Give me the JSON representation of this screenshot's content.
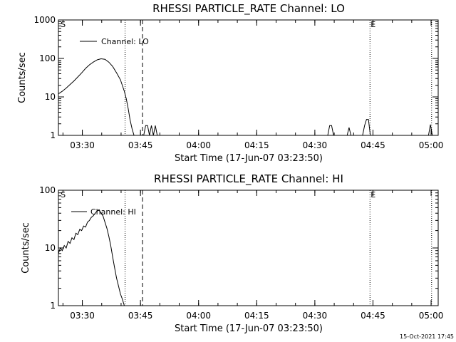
{
  "app": "RHESSI quicklook plot",
  "footer": {
    "timestamp": "15-Oct-2021 17:45"
  },
  "colors": {
    "background": "#ffffff",
    "foreground": "#000000"
  },
  "chart_data": [
    {
      "type": "line",
      "title": "RHESSI PARTICLE_RATE Channel: LO",
      "xlabel": "Start Time (17-Jun-07 03:23:50)",
      "ylabel": "Counts/sec",
      "yscale": "log",
      "ylim": [
        1,
        1000
      ],
      "xlim_minutes": [
        0,
        98
      ],
      "x_ticks": [
        {
          "minute": 6.17,
          "label": "03:30"
        },
        {
          "minute": 21.17,
          "label": "03:45"
        },
        {
          "minute": 36.17,
          "label": "04:00"
        },
        {
          "minute": 51.17,
          "label": "04:15"
        },
        {
          "minute": 66.17,
          "label": "04:30"
        },
        {
          "minute": 81.17,
          "label": "04:45"
        },
        {
          "minute": 96.17,
          "label": "05:00"
        }
      ],
      "y_ticks": [
        {
          "value": 1,
          "label": "1"
        },
        {
          "value": 10,
          "label": "10"
        },
        {
          "value": 100,
          "label": "100"
        },
        {
          "value": 1000,
          "label": "1000"
        }
      ],
      "legend": {
        "label": "Channel: LO",
        "position": "top-left"
      },
      "markers": [
        {
          "minute": 0.4,
          "label": "S",
          "style": "none"
        },
        {
          "minute": 17.2,
          "label": "",
          "style": "dotted"
        },
        {
          "minute": 21.7,
          "label": "",
          "style": "dashed"
        },
        {
          "minute": 80.4,
          "label": "E",
          "style": "dotted"
        },
        {
          "minute": 96.3,
          "label": "",
          "style": "dotted"
        }
      ],
      "series": [
        {
          "name": "Channel: LO",
          "x": [
            0,
            1,
            2,
            3,
            4,
            5,
            6,
            7,
            8,
            9,
            10,
            11,
            12,
            13,
            14,
            15,
            16,
            17,
            17.5,
            18,
            18.5,
            19,
            19.5,
            20,
            20.5,
            21,
            21.5,
            22,
            22.5,
            23,
            23.5,
            24,
            24.5,
            25,
            25.5,
            26,
            26.5,
            27,
            69.5,
            70,
            70.5,
            71,
            71.5,
            74.5,
            75,
            75.5,
            78.5,
            79,
            79.5,
            80,
            80.5,
            81,
            81.5,
            95.5,
            96,
            96.5
          ],
          "values": [
            12,
            14,
            17,
            21,
            26,
            33,
            42,
            55,
            68,
            80,
            92,
            98,
            95,
            80,
            62,
            42,
            28,
            14,
            9,
            5,
            2.5,
            1.5,
            1,
            1,
            1,
            1,
            1,
            1,
            1.8,
            1.8,
            1,
            1.8,
            1,
            1.8,
            1,
            1,
            1,
            1,
            1,
            1.8,
            1.8,
            1,
            1,
            1,
            1.6,
            1,
            1,
            1.8,
            2.6,
            2.6,
            1,
            1,
            1,
            1,
            1.9,
            1
          ]
        }
      ]
    },
    {
      "type": "line",
      "title": "RHESSI PARTICLE_RATE Channel: HI",
      "xlabel": "Start Time (17-Jun-07 03:23:50)",
      "ylabel": "Counts/sec",
      "yscale": "log",
      "ylim": [
        1,
        100
      ],
      "xlim_minutes": [
        0,
        98
      ],
      "x_ticks": [
        {
          "minute": 6.17,
          "label": "03:30"
        },
        {
          "minute": 21.17,
          "label": "03:45"
        },
        {
          "minute": 36.17,
          "label": "04:00"
        },
        {
          "minute": 51.17,
          "label": "04:15"
        },
        {
          "minute": 66.17,
          "label": "04:30"
        },
        {
          "minute": 81.17,
          "label": "04:45"
        },
        {
          "minute": 96.17,
          "label": "05:00"
        }
      ],
      "y_ticks": [
        {
          "value": 1,
          "label": "1"
        },
        {
          "value": 10,
          "label": "10"
        },
        {
          "value": 100,
          "label": "100"
        }
      ],
      "legend": {
        "label": "Channel: HI",
        "position": "top-left"
      },
      "markers": [
        {
          "minute": 0.4,
          "label": "S",
          "style": "none"
        },
        {
          "minute": 17.2,
          "label": "",
          "style": "dotted"
        },
        {
          "minute": 21.7,
          "label": "",
          "style": "dashed"
        },
        {
          "minute": 80.4,
          "label": "E",
          "style": "dotted"
        },
        {
          "minute": 96.3,
          "label": "",
          "style": "dotted"
        }
      ],
      "series": [
        {
          "name": "Channel: HI",
          "x": [
            0,
            0.5,
            1,
            1.5,
            2,
            2.5,
            3,
            3.5,
            4,
            4.5,
            5,
            5.5,
            6,
            6.5,
            7,
            7.5,
            8,
            8.5,
            9,
            9.5,
            10,
            10.5,
            11,
            11.5,
            12,
            12.5,
            13,
            13.5,
            14,
            14.5,
            15,
            15.5,
            16,
            16.5,
            17,
            17.5
          ],
          "values": [
            8,
            10,
            9,
            11,
            10,
            13,
            12,
            15,
            14,
            18,
            17,
            21,
            20,
            24,
            23,
            28,
            30,
            34,
            36,
            40,
            44,
            46,
            40,
            36,
            28,
            22,
            16,
            11,
            7,
            4.5,
            3,
            2.2,
            1.6,
            1.3,
            1,
            1
          ]
        }
      ]
    }
  ]
}
